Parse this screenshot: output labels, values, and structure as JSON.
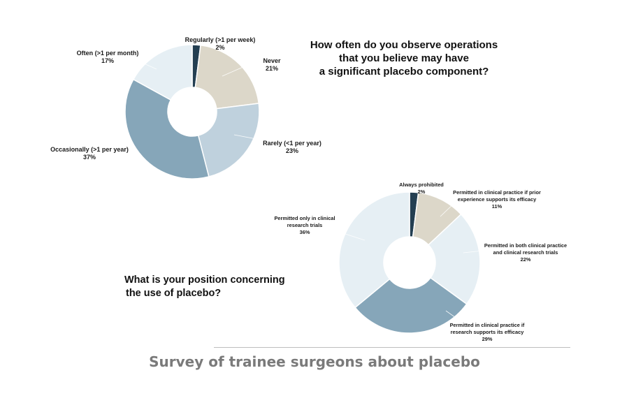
{
  "caption": "Survey of trainee surgeons about placebo",
  "colors": {
    "dark_navy": "#243f52",
    "beige": "#dcd7c9",
    "light_blue": "#bfd1dd",
    "steel_blue": "#86a6b9",
    "pale_blue": "#e6eff4",
    "divider": "#bdbdbd",
    "caption_text": "#7a7a7a"
  },
  "chart_data": [
    {
      "type": "pie",
      "donut": true,
      "title_lines": [
        "How often do you observe operations",
        "that you believe may have",
        "a significant placebo component?"
      ],
      "slices": [
        {
          "label": "Regularly (>1 per week)",
          "percent_label": "2%",
          "value": 2,
          "color": "#243f52"
        },
        {
          "label": "Never",
          "percent_label": "21%",
          "value": 21,
          "color": "#dcd7c9"
        },
        {
          "label": "Rarely (<1 per year)",
          "percent_label": "23%",
          "value": 23,
          "color": "#bfd1dd"
        },
        {
          "label": "Occasionally (>1 per year)",
          "percent_label": "37%",
          "value": 37,
          "color": "#86a6b9"
        },
        {
          "label": "Often (>1 per month)",
          "percent_label": "17%",
          "value": 17,
          "color": "#e6eff4"
        }
      ]
    },
    {
      "type": "pie",
      "donut": true,
      "title_lines": [
        "What is your position concerning",
        "the use of placebo?"
      ],
      "slices": [
        {
          "label_lines": [
            "Always prohibited"
          ],
          "percent_label": "2%",
          "value": 2,
          "color": "#243f52"
        },
        {
          "label_lines": [
            "Permitted in clinical practice if prior",
            "experience supports its efficacy"
          ],
          "percent_label": "11%",
          "value": 11,
          "color": "#dcd7c9"
        },
        {
          "label_lines": [
            "Permitted in both clinical practice",
            "and clinical research trials"
          ],
          "percent_label": "22%",
          "value": 22,
          "color": "#e6eff4"
        },
        {
          "label_lines": [
            "Permitted in clinical practice if",
            "research supports its efficacy"
          ],
          "percent_label": "29%",
          "value": 29,
          "color": "#86a6b9"
        },
        {
          "label_lines": [
            "Permitted only in clinical",
            "research trials"
          ],
          "percent_label": "36%",
          "value": 36,
          "color": "#e6eff4"
        }
      ]
    }
  ]
}
